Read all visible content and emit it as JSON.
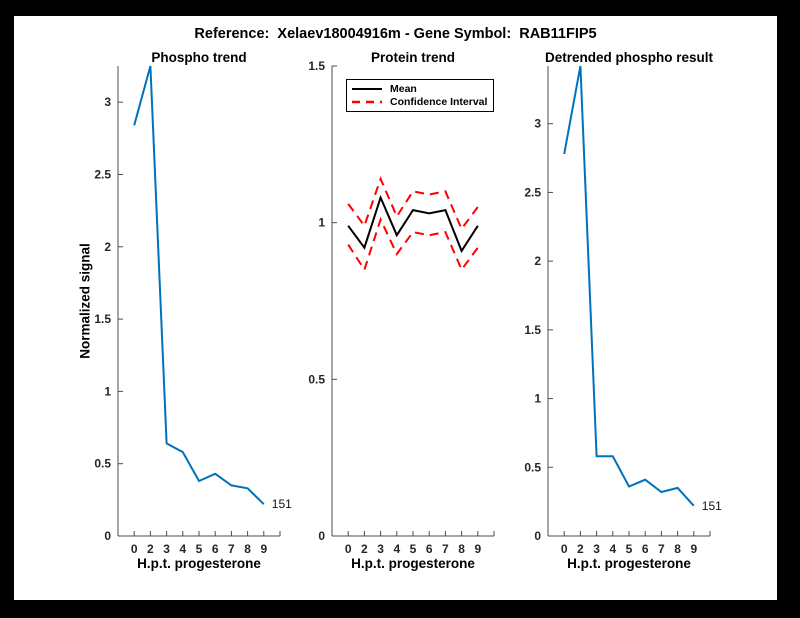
{
  "figure": {
    "title": "Reference:  Xelaev18004916m - Gene Symbol:  RAB11FIP5"
  },
  "colors": {
    "blue": "#0072BD",
    "red": "#FF0000",
    "black": "#000000",
    "axis": "#4d4d4d",
    "tick_label": "#262626"
  },
  "chart_data": [
    {
      "type": "line",
      "title": "Phospho trend",
      "xlabel": "H.p.t. progesterone",
      "ylabel": "Normalized signal",
      "x_tick_labels": [
        "0",
        "2",
        "3",
        "4",
        "5",
        "6",
        "7",
        "8",
        "9"
      ],
      "ylim": [
        0,
        3.25
      ],
      "yticks": [
        0,
        0.5,
        1,
        1.5,
        2,
        2.5,
        3
      ],
      "grid": false,
      "series": [
        {
          "name": "phospho-trend",
          "color": "#0072BD",
          "style": "solid",
          "values": [
            2.84,
            3.25,
            0.64,
            0.58,
            0.38,
            0.43,
            0.35,
            0.33,
            0.22
          ]
        }
      ],
      "annotation": "151"
    },
    {
      "type": "line",
      "title": "Protein trend",
      "xlabel": "H.p.t. progesterone",
      "ylabel": "",
      "x_tick_labels": [
        "0",
        "2",
        "3",
        "4",
        "5",
        "6",
        "7",
        "8",
        "9"
      ],
      "ylim": [
        0,
        1.5
      ],
      "yticks": [
        0,
        0.5,
        1,
        1.5
      ],
      "grid": false,
      "legend": {
        "position": "northwest",
        "mean_label": "Mean",
        "ci_label": "Confidence Interval"
      },
      "series": [
        {
          "name": "mean",
          "color": "#000000",
          "style": "solid",
          "values": [
            0.99,
            0.92,
            1.08,
            0.96,
            1.04,
            1.03,
            1.04,
            0.91,
            0.99
          ]
        },
        {
          "name": "ci-upper",
          "color": "#FF0000",
          "style": "dashed",
          "values": [
            1.06,
            0.99,
            1.14,
            1.02,
            1.1,
            1.09,
            1.1,
            0.98,
            1.05
          ]
        },
        {
          "name": "ci-lower",
          "color": "#FF0000",
          "style": "dashed",
          "values": [
            0.93,
            0.85,
            1.01,
            0.9,
            0.97,
            0.96,
            0.97,
            0.85,
            0.92
          ]
        }
      ]
    },
    {
      "type": "line",
      "title": "Detrended phospho result",
      "xlabel": "H.p.t. progesterone",
      "ylabel": "",
      "x_tick_labels": [
        "0",
        "2",
        "3",
        "4",
        "5",
        "6",
        "7",
        "8",
        "9"
      ],
      "ylim": [
        0,
        3.42
      ],
      "yticks": [
        0,
        0.5,
        1,
        1.5,
        2,
        2.5,
        3
      ],
      "grid": false,
      "series": [
        {
          "name": "detrended-phospho",
          "color": "#0072BD",
          "style": "solid",
          "values": [
            2.78,
            3.42,
            0.58,
            0.58,
            0.36,
            0.41,
            0.32,
            0.35,
            0.22
          ]
        }
      ],
      "annotation": "151"
    }
  ]
}
